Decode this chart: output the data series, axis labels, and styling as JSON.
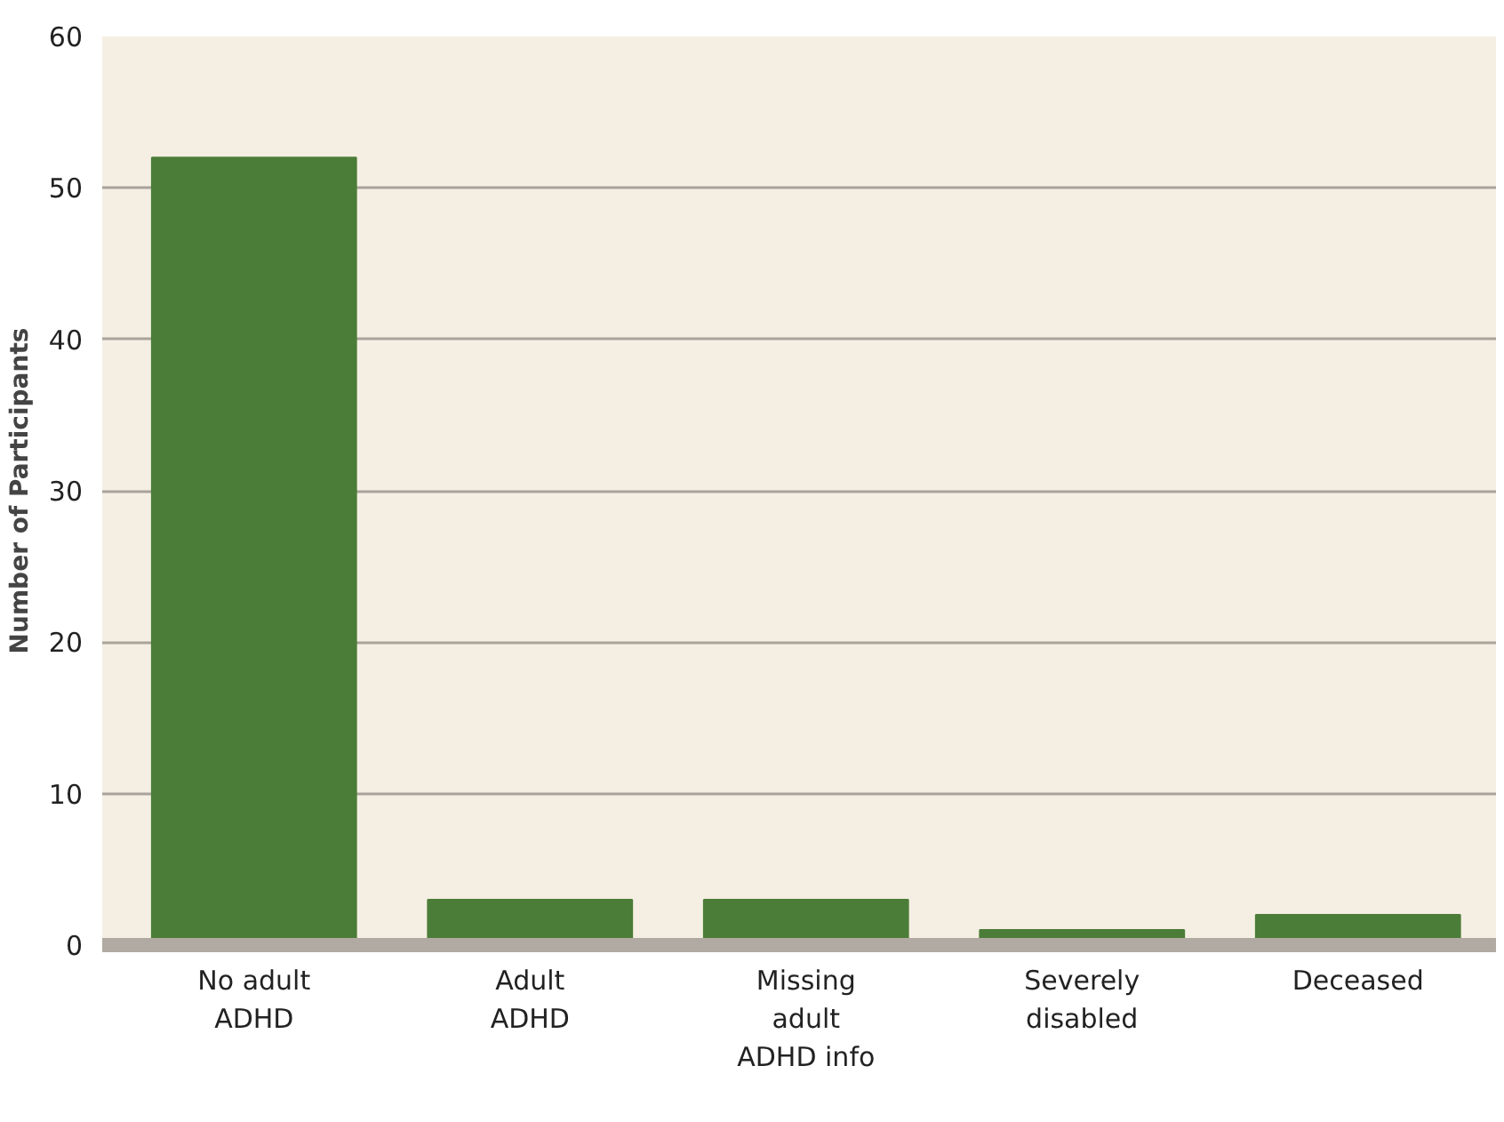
{
  "chart_data": {
    "type": "bar",
    "ylabel": "Number of Participants",
    "categories": [
      "No adult\nADHD",
      "Adult\nADHD",
      "Missing\nadult\nADHD info",
      "Severely\ndisabled",
      "Deceased"
    ],
    "values": [
      52,
      3,
      3,
      1,
      2
    ],
    "color": "#4b7d38",
    "ylim": [
      0,
      60
    ],
    "yticks": [
      0,
      10,
      20,
      30,
      40,
      50,
      60
    ],
    "grid": "y"
  }
}
